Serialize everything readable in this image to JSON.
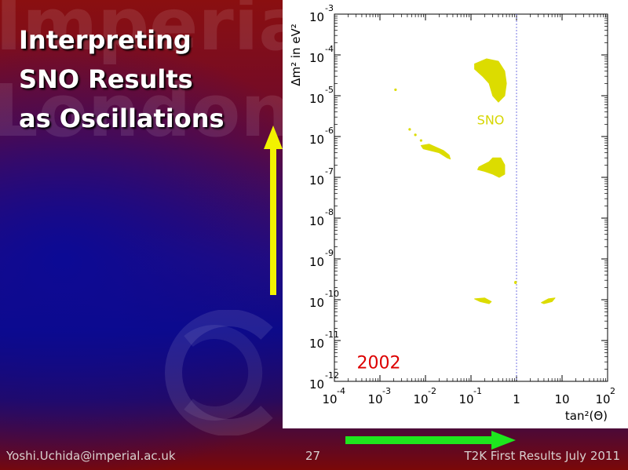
{
  "slide": {
    "title_lines": [
      "Interpreting",
      "SNO Results",
      "as Oscillations"
    ],
    "watermark_lines": [
      "Imperial",
      "London"
    ],
    "footer": {
      "email": "Yoshi.Uchida@imperial.ac.uk",
      "page_number": "27",
      "event": "T2K First Results July 2011"
    },
    "colors": {
      "y_arrow": "#f2f200",
      "x_arrow": "#1ee61e",
      "region_fill": "#dcdc00",
      "year_label": "#dd0000",
      "sno_label": "#d6d600"
    }
  },
  "chart_data": {
    "type": "scatter",
    "xlabel": "tan²(Θ)",
    "ylabel": "Δm² in eV²",
    "xscale": "log",
    "yscale": "log",
    "xlim": [
      0.0001,
      100
    ],
    "ylim": [
      1e-12,
      0.001
    ],
    "x_ticks": [
      {
        "base": "10",
        "exp": "-4"
      },
      {
        "base": "10",
        "exp": "-3"
      },
      {
        "base": "10",
        "exp": "-2"
      },
      {
        "base": "10",
        "exp": "-1"
      },
      {
        "base": "1",
        "exp": ""
      },
      {
        "base": "10",
        "exp": ""
      },
      {
        "base": "10",
        "exp": "2"
      }
    ],
    "y_ticks": [
      {
        "base": "10",
        "exp": "-3"
      },
      {
        "base": "10",
        "exp": "-4"
      },
      {
        "base": "10",
        "exp": "-5"
      },
      {
        "base": "10",
        "exp": "-6"
      },
      {
        "base": "10",
        "exp": "-7"
      },
      {
        "base": "10",
        "exp": "-8"
      },
      {
        "base": "10",
        "exp": "-9"
      },
      {
        "base": "10",
        "exp": "-10"
      },
      {
        "base": "10",
        "exp": "-11"
      },
      {
        "base": "10",
        "exp": "-12"
      }
    ],
    "reference_line_x": 1,
    "annotations": [
      {
        "text": "SNO",
        "x": 0.3,
        "y": 2e-06
      },
      {
        "text": "2002",
        "x": 0.0005,
        "y": 3.2e-12
      }
    ],
    "regions": [
      {
        "name": "large-mixing-angle-region",
        "points": [
          [
            0.12,
            6e-05
          ],
          [
            0.22,
            8e-05
          ],
          [
            0.4,
            7e-05
          ],
          [
            0.55,
            4e-05
          ],
          [
            0.6,
            2e-05
          ],
          [
            0.55,
            1e-05
          ],
          [
            0.4,
            7e-06
          ],
          [
            0.3,
            1e-05
          ],
          [
            0.25,
            2e-05
          ],
          [
            0.18,
            3e-05
          ],
          [
            0.12,
            4.5e-05
          ]
        ]
      },
      {
        "name": "low-region",
        "points": [
          [
            0.15,
            1.8e-07
          ],
          [
            0.25,
            2.4e-07
          ],
          [
            0.3,
            3e-07
          ],
          [
            0.45,
            3e-07
          ],
          [
            0.55,
            2e-07
          ],
          [
            0.55,
            1.2e-07
          ],
          [
            0.42,
            1e-07
          ],
          [
            0.3,
            1.2e-07
          ],
          [
            0.2,
            1.4e-07
          ],
          [
            0.14,
            1.55e-07
          ]
        ]
      },
      {
        "name": "small-mixing-angle-band",
        "points": [
          [
            0.009,
            5e-07
          ],
          [
            0.02,
            4e-07
          ],
          [
            0.03,
            3e-07
          ],
          [
            0.035,
            2.8e-07
          ],
          [
            0.033,
            3.5e-07
          ],
          [
            0.025,
            4.5e-07
          ],
          [
            0.012,
            6.5e-07
          ],
          [
            0.008,
            6e-07
          ]
        ]
      },
      {
        "name": "vacuum-left-region",
        "points": [
          [
            0.12,
            1.05e-10
          ],
          [
            0.2,
            1.1e-10
          ],
          [
            0.28,
            9e-11
          ],
          [
            0.25,
            8e-11
          ],
          [
            0.16,
            9e-11
          ]
        ]
      },
      {
        "name": "vacuum-right-region",
        "points": [
          [
            3.5,
            8.5e-11
          ],
          [
            5,
            1.05e-10
          ],
          [
            7,
            1.1e-10
          ],
          [
            6,
            9e-11
          ],
          [
            4,
            8e-11
          ]
        ]
      }
    ],
    "dots": [
      {
        "x": 0.0022,
        "y": 1.4e-05
      },
      {
        "x": 0.0045,
        "y": 1.5e-06
      },
      {
        "x": 0.006,
        "y": 1.1e-06
      },
      {
        "x": 0.008,
        "y": 8e-07
      },
      {
        "x": 0.95,
        "y": 2.7e-10
      },
      {
        "x": 0.95,
        "y": 2.6e-10
      }
    ]
  }
}
